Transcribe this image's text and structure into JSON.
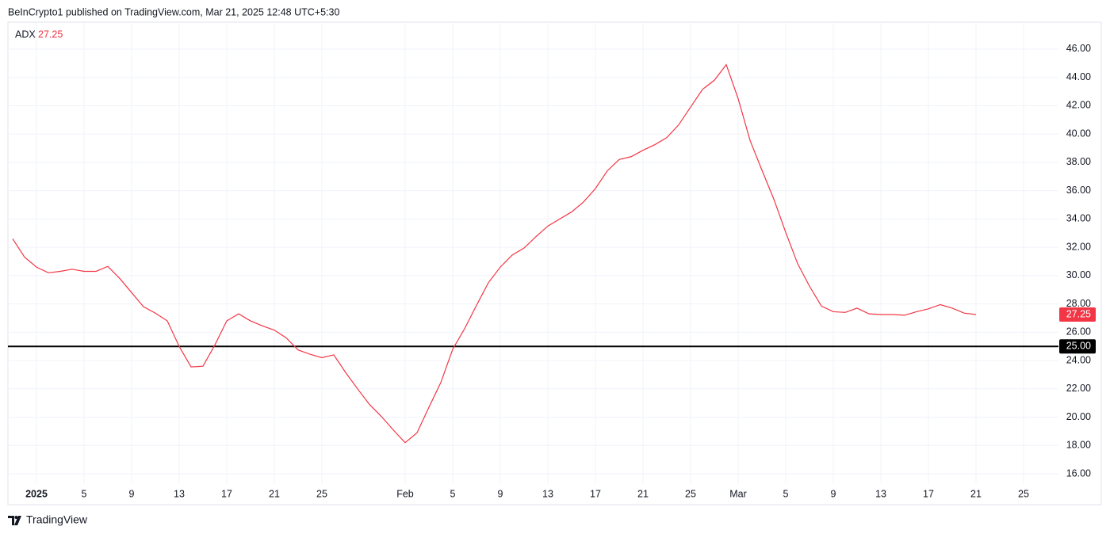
{
  "header": {
    "text": "BeInCrypto1 published on TradingView.com, Mar 21, 2025 12:48 UTC+5:30"
  },
  "footer": {
    "brand": "TradingView"
  },
  "chart_data": {
    "type": "line",
    "categories": [
      null,
      null,
      "2025",
      null,
      null,
      null,
      "5",
      null,
      null,
      null,
      "9",
      null,
      null,
      null,
      "13",
      null,
      null,
      null,
      "17",
      null,
      null,
      null,
      "21",
      null,
      null,
      null,
      "25",
      null,
      null,
      null,
      null,
      null,
      null,
      "Feb",
      null,
      null,
      null,
      "5",
      null,
      null,
      null,
      "9",
      null,
      null,
      null,
      "13",
      null,
      null,
      null,
      "17",
      null,
      null,
      null,
      "21",
      null,
      null,
      null,
      "25",
      null,
      null,
      null,
      "Mar",
      null,
      null,
      null,
      "5",
      null,
      null,
      null,
      "9",
      null,
      null,
      null,
      "13",
      null,
      null,
      null,
      "17",
      null,
      null,
      null,
      "21",
      null,
      null,
      null,
      "25"
    ],
    "series": [
      {
        "name": "ADX",
        "color": "#f23645",
        "values": [
          32.6,
          31.3,
          30.6,
          30.2,
          30.3,
          30.45,
          30.3,
          30.3,
          30.65,
          29.8,
          28.8,
          27.8,
          27.35,
          26.8,
          25.0,
          23.55,
          23.6,
          25.1,
          26.8,
          27.3,
          26.8,
          26.45,
          26.15,
          25.6,
          24.75,
          24.45,
          24.2,
          24.4,
          23.15,
          22.0,
          20.9,
          20.05,
          19.1,
          18.2,
          18.9,
          20.7,
          22.45,
          24.8,
          26.25,
          27.9,
          29.5,
          30.6,
          31.45,
          31.95,
          32.75,
          33.5,
          34.0,
          34.5,
          35.2,
          36.15,
          37.4,
          38.2,
          38.4,
          38.85,
          39.25,
          39.75,
          40.65,
          41.9,
          43.15,
          43.8,
          44.9,
          42.5,
          39.55,
          37.45,
          35.4,
          33.05,
          30.85,
          29.25,
          27.85,
          27.45,
          27.4,
          27.7,
          27.3,
          27.25,
          27.25,
          27.2,
          27.45,
          27.65,
          27.95,
          27.7,
          27.35,
          27.25,
          null,
          null,
          null,
          null
        ]
      }
    ],
    "hline": {
      "value": 25,
      "label": "25.00",
      "color": "#000000"
    },
    "ylim": [
      15.33,
      47.9
    ],
    "yticks": [
      {
        "value": 16,
        "label": "16.00"
      },
      {
        "value": 18,
        "label": "18.00"
      },
      {
        "value": 20,
        "label": "20.00"
      },
      {
        "value": 22,
        "label": "22.00"
      },
      {
        "value": 24,
        "label": "24.00"
      },
      {
        "value": 26,
        "label": "26.00"
      },
      {
        "value": 28,
        "label": "28.00"
      },
      {
        "value": 30,
        "label": "30.00"
      },
      {
        "value": 32,
        "label": "32.00"
      },
      {
        "value": 34,
        "label": "34.00"
      },
      {
        "value": 36,
        "label": "36.00"
      },
      {
        "value": 38,
        "label": "38.00"
      },
      {
        "value": 40,
        "label": "40.00"
      },
      {
        "value": 42,
        "label": "42.00"
      },
      {
        "value": 44,
        "label": "44.00"
      },
      {
        "value": 46,
        "label": "46.00"
      }
    ],
    "grid": true
  }
}
